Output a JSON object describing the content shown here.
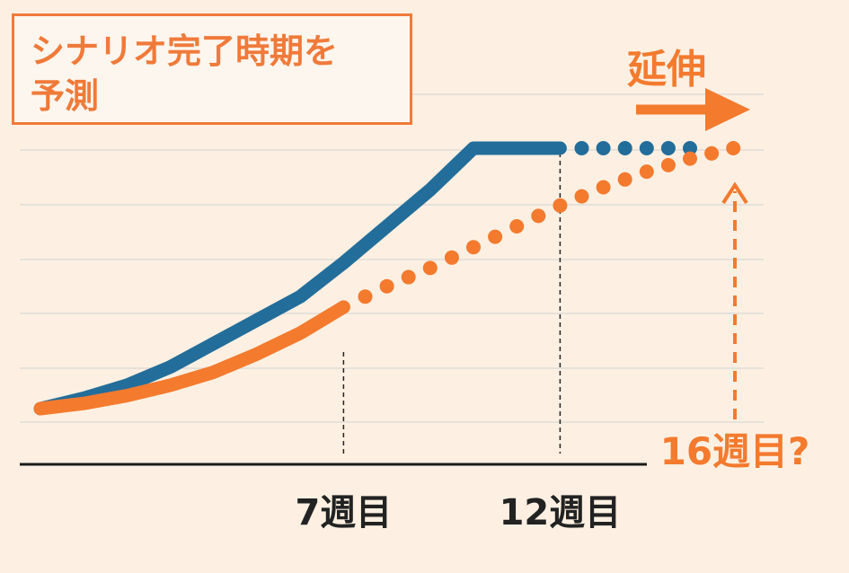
{
  "title_lines": [
    "シナリオ完了時期を",
    "予測"
  ],
  "annotations": {
    "extension_label": "延伸",
    "question_label": "16週目?"
  },
  "colors": {
    "background": "#fdf0e2",
    "orange": "#f47a2e",
    "blue": "#236d9a",
    "grid": "#dfdcd8",
    "axis": "#1a1a1a"
  },
  "chart_data": {
    "type": "line",
    "title": "シナリオ完了時期を予測",
    "x_tick_labels": [
      {
        "x": 7,
        "label": "7週目"
      },
      {
        "x": 12,
        "label": "12週目"
      }
    ],
    "ylim": [
      0,
      100
    ],
    "xlim": [
      0,
      16
    ],
    "grid": true,
    "series": [
      {
        "color": "#236d9a",
        "style": "solid",
        "x": [
          0,
          1,
          2,
          3,
          4,
          5,
          6,
          7,
          8,
          9,
          10,
          11,
          12
        ],
        "y": [
          0,
          4,
          9,
          16,
          25,
          34,
          43,
          56,
          70,
          84,
          100,
          100,
          100
        ]
      },
      {
        "color": "#236d9a",
        "style": "dotted",
        "x": [
          12,
          13,
          14,
          15
        ],
        "y": [
          100,
          100,
          100,
          100
        ]
      },
      {
        "color": "#f47a2e",
        "style": "solid",
        "x": [
          0,
          1,
          2,
          3,
          4,
          5,
          6,
          7
        ],
        "y": [
          0,
          2,
          5,
          9,
          14,
          21,
          29,
          39
        ]
      },
      {
        "color": "#f47a2e",
        "style": "dotted",
        "x": [
          7,
          8,
          9,
          10,
          11,
          12,
          13,
          14,
          15,
          16
        ],
        "y": [
          39,
          47,
          54,
          62,
          70,
          78,
          85,
          91,
          96,
          100
        ]
      }
    ]
  }
}
